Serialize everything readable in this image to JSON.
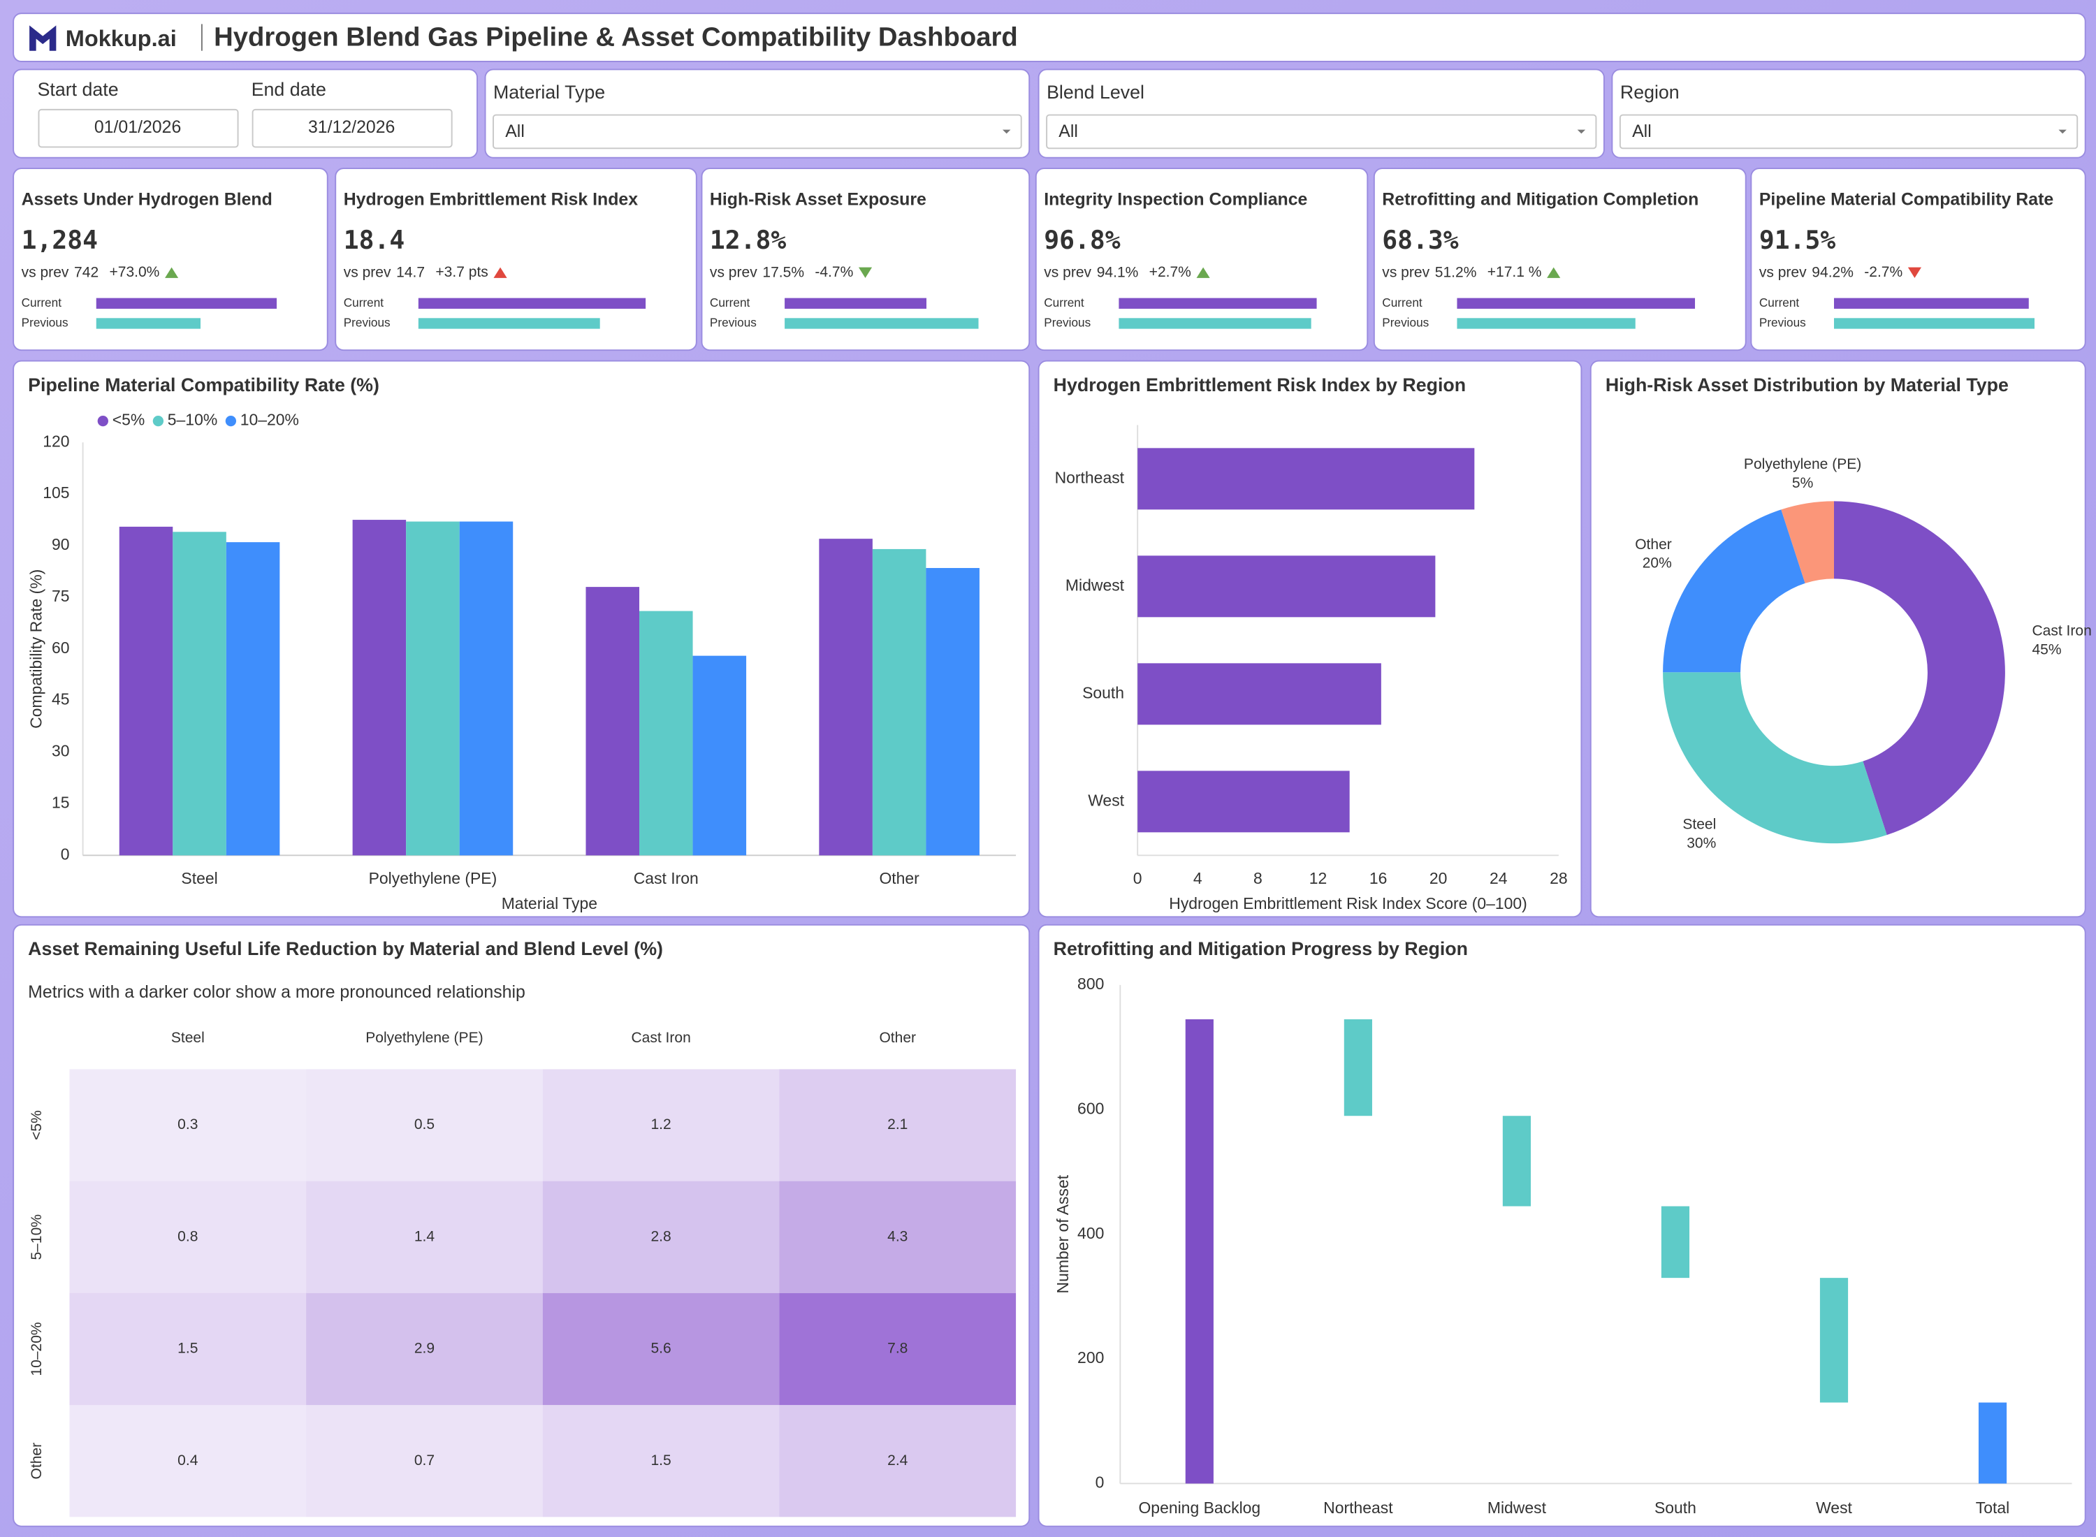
{
  "header": {
    "brand": "Mokkup.ai",
    "title": "Hydrogen Blend Gas Pipeline & Asset Compatibility Dashboard"
  },
  "filters": {
    "start_label": "Start date",
    "start": "01/01/2026",
    "end_label": "End date",
    "end": "31/12/2026",
    "material_label": "Material Type",
    "material": "All",
    "blend_label": "Blend Level",
    "blend": "All",
    "region_label": "Region",
    "region": "All"
  },
  "kpi_prev_prefix": "vs prev",
  "kpi_current": "Current",
  "kpi_previous": "Previous",
  "kpis": [
    {
      "title": "Assets Under Hydrogen Blend",
      "value": 1284,
      "value_label": "1,284",
      "previous": 742,
      "change_label": "+73.0%",
      "direction": "up",
      "color": "#6aa84f"
    },
    {
      "title": "Hydrogen Embrittlement Risk Index",
      "value": 18.4,
      "previous": 14.7,
      "change_label": "+3.7 pts",
      "direction": "up",
      "color": "#e0483e"
    },
    {
      "title": "High-Risk Asset Exposure",
      "value": 12.8,
      "value_label": "12.8%",
      "previous": 17.5,
      "previous_label": "17.5%",
      "change_label": "-4.7%",
      "direction": "down",
      "color": "#6aa84f"
    },
    {
      "title": "Integrity Inspection Compliance",
      "value": 96.8,
      "value_label": "96.8%",
      "previous": 94.1,
      "previous_label": "94.1%",
      "change_label": "+2.7%",
      "direction": "up",
      "color": "#6aa84f"
    },
    {
      "title": "Retrofitting and Mitigation Completion",
      "value": 68.3,
      "value_label": "68.3%",
      "previous": 51.2,
      "previous_label": "51.2%",
      "change_label": "+17.1 %",
      "direction": "up",
      "color": "#6aa84f"
    },
    {
      "title": "Pipeline Material Compatibility Rate",
      "value": 91.5,
      "value_label": "91.5%",
      "previous": 94.2,
      "previous_label": "94.2%",
      "change_label": "-2.7%",
      "direction": "down",
      "color": "#e0483e"
    }
  ],
  "chart_data": [
    {
      "type": "bar",
      "title": "Pipeline Material Compatibility Rate (%)",
      "categories": [
        "Steel",
        "Polyethylene (PE)",
        "Cast Iron",
        "Other"
      ],
      "series": [
        {
          "name": "<5%",
          "color": "#7e4fc6",
          "values": [
            95.5,
            97.5,
            78,
            92
          ]
        },
        {
          "name": "5–10%",
          "color": "#5ecbc8",
          "values": [
            94,
            97,
            71,
            89
          ]
        },
        {
          "name": "10–20%",
          "color": "#3f8efc",
          "values": [
            91,
            97,
            58,
            83.5
          ]
        }
      ],
      "ylim": [
        0,
        120
      ],
      "yticks": [
        0,
        15,
        30,
        45,
        60,
        75,
        90,
        105,
        120
      ],
      "ylabel": "Compatibility Rate (%)",
      "xlabel": "Material Type",
      "legend": "top-left",
      "grid": false
    },
    {
      "type": "bar",
      "horizontal": true,
      "title": "Hydrogen Embrittlement Risk Index by Region",
      "categories": [
        "Northeast",
        "Midwest",
        "South",
        "West"
      ],
      "values": [
        22.4,
        19.8,
        16.2,
        14.1
      ],
      "color": "#7e4fc6",
      "xlim": [
        0,
        28
      ],
      "xticks": [
        0,
        4,
        8,
        12,
        16,
        20,
        24,
        28
      ],
      "xlabel": "Hydrogen Embrittlement Risk Index Score (0–100)",
      "grid": false
    },
    {
      "type": "pie",
      "title": "High-Risk Asset Distribution by Material Type",
      "categories": [
        "Cast Iron",
        "Steel",
        "Other",
        "Polyethylene (PE)"
      ],
      "values": [
        45,
        30,
        20,
        5
      ],
      "value_labels": [
        "45%",
        "30%",
        "20%",
        "5%"
      ],
      "colors": [
        "#7e4fc6",
        "#5ecbc8",
        "#3f8efc",
        "#fb9679"
      ],
      "donut": true
    },
    {
      "type": "heatmap",
      "title": "Asset Remaining Useful Life Reduction by Material and Blend Level (%)",
      "subtitle": "Metrics with a darker color show a more pronounced relationship",
      "x_categories": [
        "Steel",
        "Polyethylene (PE)",
        "Cast Iron",
        "Other"
      ],
      "y_categories": [
        "<5%",
        "5–10%",
        "10–20%",
        "Other"
      ],
      "values": [
        [
          0.3,
          0.5,
          1.2,
          2.1
        ],
        [
          0.8,
          1.4,
          2.8,
          4.3
        ],
        [
          1.5,
          2.9,
          5.6,
          7.8
        ],
        [
          0.4,
          0.7,
          1.5,
          2.4
        ]
      ],
      "color": "#8e5bd0"
    },
    {
      "type": "waterfall",
      "title": "Retrofitting and Mitigation Progress by Region",
      "categories": [
        "Opening Backlog",
        "Northeast",
        "Midwest",
        "South",
        "West",
        "Total"
      ],
      "values": [
        745,
        -155,
        -145,
        -115,
        -200,
        130
      ],
      "measure": [
        "absolute",
        "relative",
        "relative",
        "relative",
        "relative",
        "total"
      ],
      "colors": {
        "absolute": "#7e4fc6",
        "decrease": "#5ecbc8",
        "total": "#3f8efc"
      },
      "ylim": [
        0,
        800
      ],
      "yticks": [
        0,
        200,
        400,
        600,
        800
      ],
      "ylabel": "Number of Asset",
      "grid": false
    }
  ]
}
